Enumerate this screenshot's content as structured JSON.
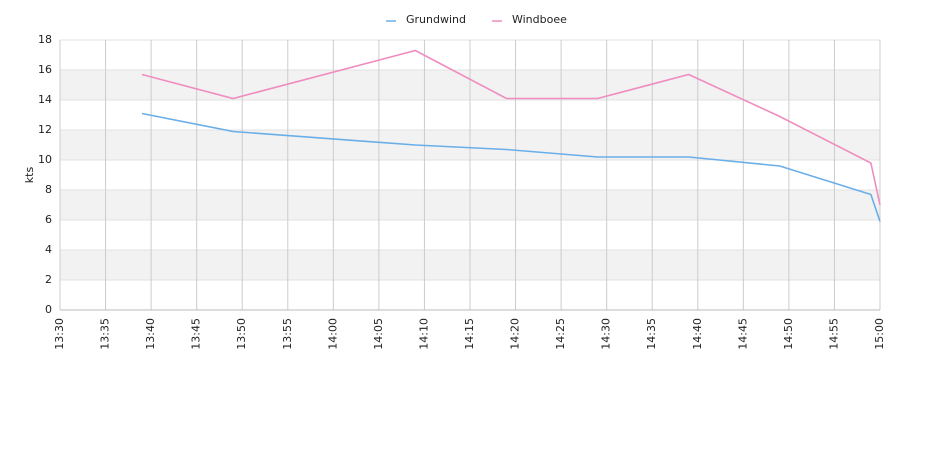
{
  "chart_data": {
    "type": "line",
    "y_label": "kts",
    "x": [
      "13:39",
      "13:49",
      "14:09",
      "14:19",
      "14:29",
      "14:39",
      "14:49",
      "14:59",
      "15:00"
    ],
    "series": [
      {
        "name": "Grundwind",
        "color": "#6aaee8",
        "values": [
          13.1,
          11.9,
          11.0,
          10.7,
          10.2,
          10.2,
          9.6,
          7.7,
          5.9
        ]
      },
      {
        "name": "Windboee",
        "color": "#ef8cc0",
        "values": [
          15.7,
          14.1,
          17.3,
          14.1,
          14.1,
          15.7,
          12.9,
          9.8,
          7.0
        ]
      }
    ],
    "xlim": [
      "13:30",
      "15:00"
    ],
    "xticks": [
      "13:30",
      "13:35",
      "13:40",
      "13:45",
      "13:50",
      "13:55",
      "14:00",
      "14:05",
      "14:10",
      "14:15",
      "14:20",
      "14:25",
      "14:30",
      "14:35",
      "14:40",
      "14:45",
      "14:50",
      "14:55",
      "15:00"
    ],
    "ylim": [
      0,
      18
    ],
    "yticks": [
      0,
      2,
      4,
      6,
      8,
      10,
      12,
      14,
      16,
      18
    ],
    "grid": true,
    "legend": "top"
  }
}
